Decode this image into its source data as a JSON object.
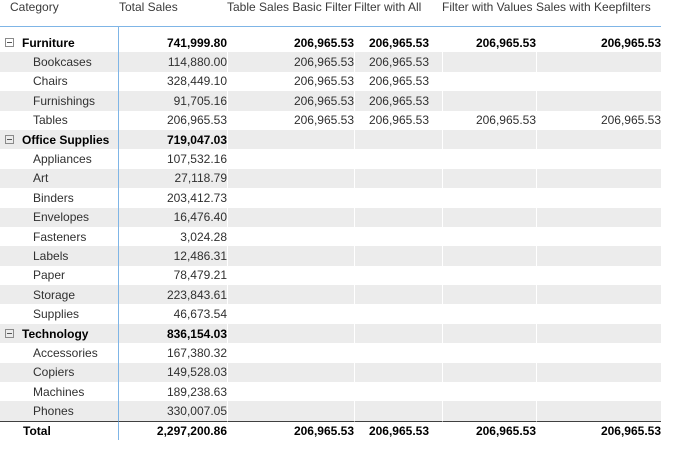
{
  "table": {
    "columns": [
      {
        "id": "category",
        "label": "Category"
      },
      {
        "id": "total-sales",
        "label": "Total Sales"
      },
      {
        "id": "table-sales-basic-filter",
        "label": "Table Sales Basic Filter"
      },
      {
        "id": "filter-with-all",
        "label": "Filter with All"
      },
      {
        "id": "filter-with-values",
        "label": "Filter with Values"
      },
      {
        "id": "sales-with-keepfilters",
        "label": "Sales with Keepfilters"
      }
    ],
    "rows": [
      {
        "label": "Furniture",
        "level": "category",
        "expanded": true,
        "values": [
          "741,999.80",
          "206,965.53",
          "206,965.53",
          "206,965.53",
          "206,965.53"
        ]
      },
      {
        "label": "Bookcases",
        "level": "sub",
        "expanded": null,
        "values": [
          "114,880.00",
          "206,965.53",
          "206,965.53",
          "",
          ""
        ]
      },
      {
        "label": "Chairs",
        "level": "sub",
        "expanded": null,
        "values": [
          "328,449.10",
          "206,965.53",
          "206,965.53",
          "",
          ""
        ]
      },
      {
        "label": "Furnishings",
        "level": "sub",
        "expanded": null,
        "values": [
          "91,705.16",
          "206,965.53",
          "206,965.53",
          "",
          ""
        ]
      },
      {
        "label": "Tables",
        "level": "sub",
        "expanded": null,
        "values": [
          "206,965.53",
          "206,965.53",
          "206,965.53",
          "206,965.53",
          "206,965.53"
        ]
      },
      {
        "label": "Office Supplies",
        "level": "category",
        "expanded": true,
        "values": [
          "719,047.03",
          "",
          "",
          "",
          ""
        ]
      },
      {
        "label": "Appliances",
        "level": "sub",
        "expanded": null,
        "values": [
          "107,532.16",
          "",
          "",
          "",
          ""
        ]
      },
      {
        "label": "Art",
        "level": "sub",
        "expanded": null,
        "values": [
          "27,118.79",
          "",
          "",
          "",
          ""
        ]
      },
      {
        "label": "Binders",
        "level": "sub",
        "expanded": null,
        "values": [
          "203,412.73",
          "",
          "",
          "",
          ""
        ]
      },
      {
        "label": "Envelopes",
        "level": "sub",
        "expanded": null,
        "values": [
          "16,476.40",
          "",
          "",
          "",
          ""
        ]
      },
      {
        "label": "Fasteners",
        "level": "sub",
        "expanded": null,
        "values": [
          "3,024.28",
          "",
          "",
          "",
          ""
        ]
      },
      {
        "label": "Labels",
        "level": "sub",
        "expanded": null,
        "values": [
          "12,486.31",
          "",
          "",
          "",
          ""
        ]
      },
      {
        "label": "Paper",
        "level": "sub",
        "expanded": null,
        "values": [
          "78,479.21",
          "",
          "",
          "",
          ""
        ]
      },
      {
        "label": "Storage",
        "level": "sub",
        "expanded": null,
        "values": [
          "223,843.61",
          "",
          "",
          "",
          ""
        ]
      },
      {
        "label": "Supplies",
        "level": "sub",
        "expanded": null,
        "values": [
          "46,673.54",
          "",
          "",
          "",
          ""
        ]
      },
      {
        "label": "Technology",
        "level": "category",
        "expanded": true,
        "values": [
          "836,154.03",
          "",
          "",
          "",
          ""
        ]
      },
      {
        "label": "Accessories",
        "level": "sub",
        "expanded": null,
        "values": [
          "167,380.32",
          "",
          "",
          "",
          ""
        ]
      },
      {
        "label": "Copiers",
        "level": "sub",
        "expanded": null,
        "values": [
          "149,528.03",
          "",
          "",
          "",
          ""
        ]
      },
      {
        "label": "Machines",
        "level": "sub",
        "expanded": null,
        "values": [
          "189,238.63",
          "",
          "",
          "",
          ""
        ]
      },
      {
        "label": "Phones",
        "level": "sub",
        "expanded": null,
        "values": [
          "330,007.05",
          "",
          "",
          "",
          ""
        ]
      },
      {
        "label": "Total",
        "level": "total",
        "expanded": null,
        "values": [
          "2,297,200.86",
          "206,965.53",
          "206,965.53",
          "206,965.53",
          "206,965.53"
        ]
      }
    ],
    "icons": {
      "collapse": "minus-box"
    },
    "colors": {
      "grid_blue": "#7fb5e6",
      "band_grey": "#ececec",
      "total_border": "#404040",
      "header_text": "#3a3a3a",
      "body_text": "#303030",
      "bold_text": "#000000"
    }
  }
}
